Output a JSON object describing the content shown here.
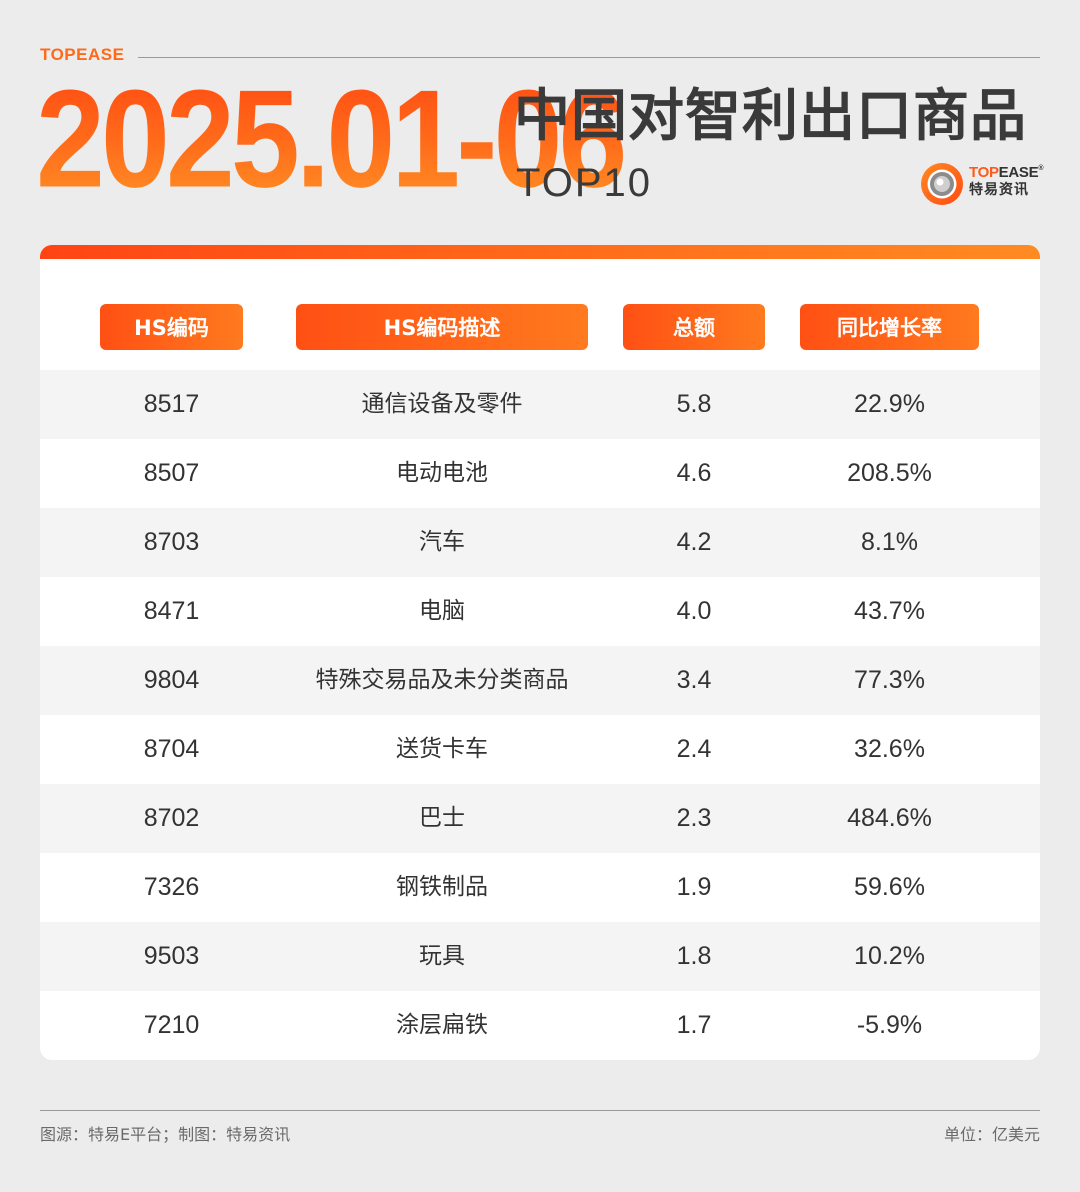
{
  "header": {
    "brand": "TOPEASE",
    "date_range": "2025.01-06",
    "title": "中国对智利出口商品",
    "subtitle": "TOP10",
    "logo": {
      "text_en_accent": "TOP",
      "text_en_rest": "EASE",
      "registered": "®",
      "text_cn": "特易资讯",
      "icon": "topease-ring-logo-icon"
    }
  },
  "footer": {
    "source": "图源：特易E平台；制图：特易资讯",
    "unit": "单位：亿美元"
  },
  "colors": {
    "accent": "#ff6a1a",
    "accent_dark": "#ff4a12",
    "title_text": "#3a3a3a",
    "row_alt": "#f4f4f4"
  },
  "chart_data": {
    "type": "table",
    "columns": [
      "HS编码",
      "HS编码描述",
      "总额",
      "同比增长率"
    ],
    "rows": [
      {
        "code": "8517",
        "desc": "通信设备及零件",
        "total": "5.8",
        "growth": "22.9%"
      },
      {
        "code": "8507",
        "desc": "电动电池",
        "total": "4.6",
        "growth": "208.5%"
      },
      {
        "code": "8703",
        "desc": "汽车",
        "total": "4.2",
        "growth": "8.1%"
      },
      {
        "code": "8471",
        "desc": "电脑",
        "total": "4.0",
        "growth": "43.7%"
      },
      {
        "code": "9804",
        "desc": "特殊交易品及未分类商品",
        "total": "3.4",
        "growth": "77.3%"
      },
      {
        "code": "8704",
        "desc": "送货卡车",
        "total": "2.4",
        "growth": "32.6%"
      },
      {
        "code": "8702",
        "desc": "巴士",
        "total": "2.3",
        "growth": "484.6%"
      },
      {
        "code": "7326",
        "desc": "钢铁制品",
        "total": "1.9",
        "growth": "59.6%"
      },
      {
        "code": "9503",
        "desc": "玩具",
        "total": "1.8",
        "growth": "10.2%"
      },
      {
        "code": "7210",
        "desc": "涂层扁铁",
        "total": "1.7",
        "growth": "-5.9%"
      }
    ]
  }
}
